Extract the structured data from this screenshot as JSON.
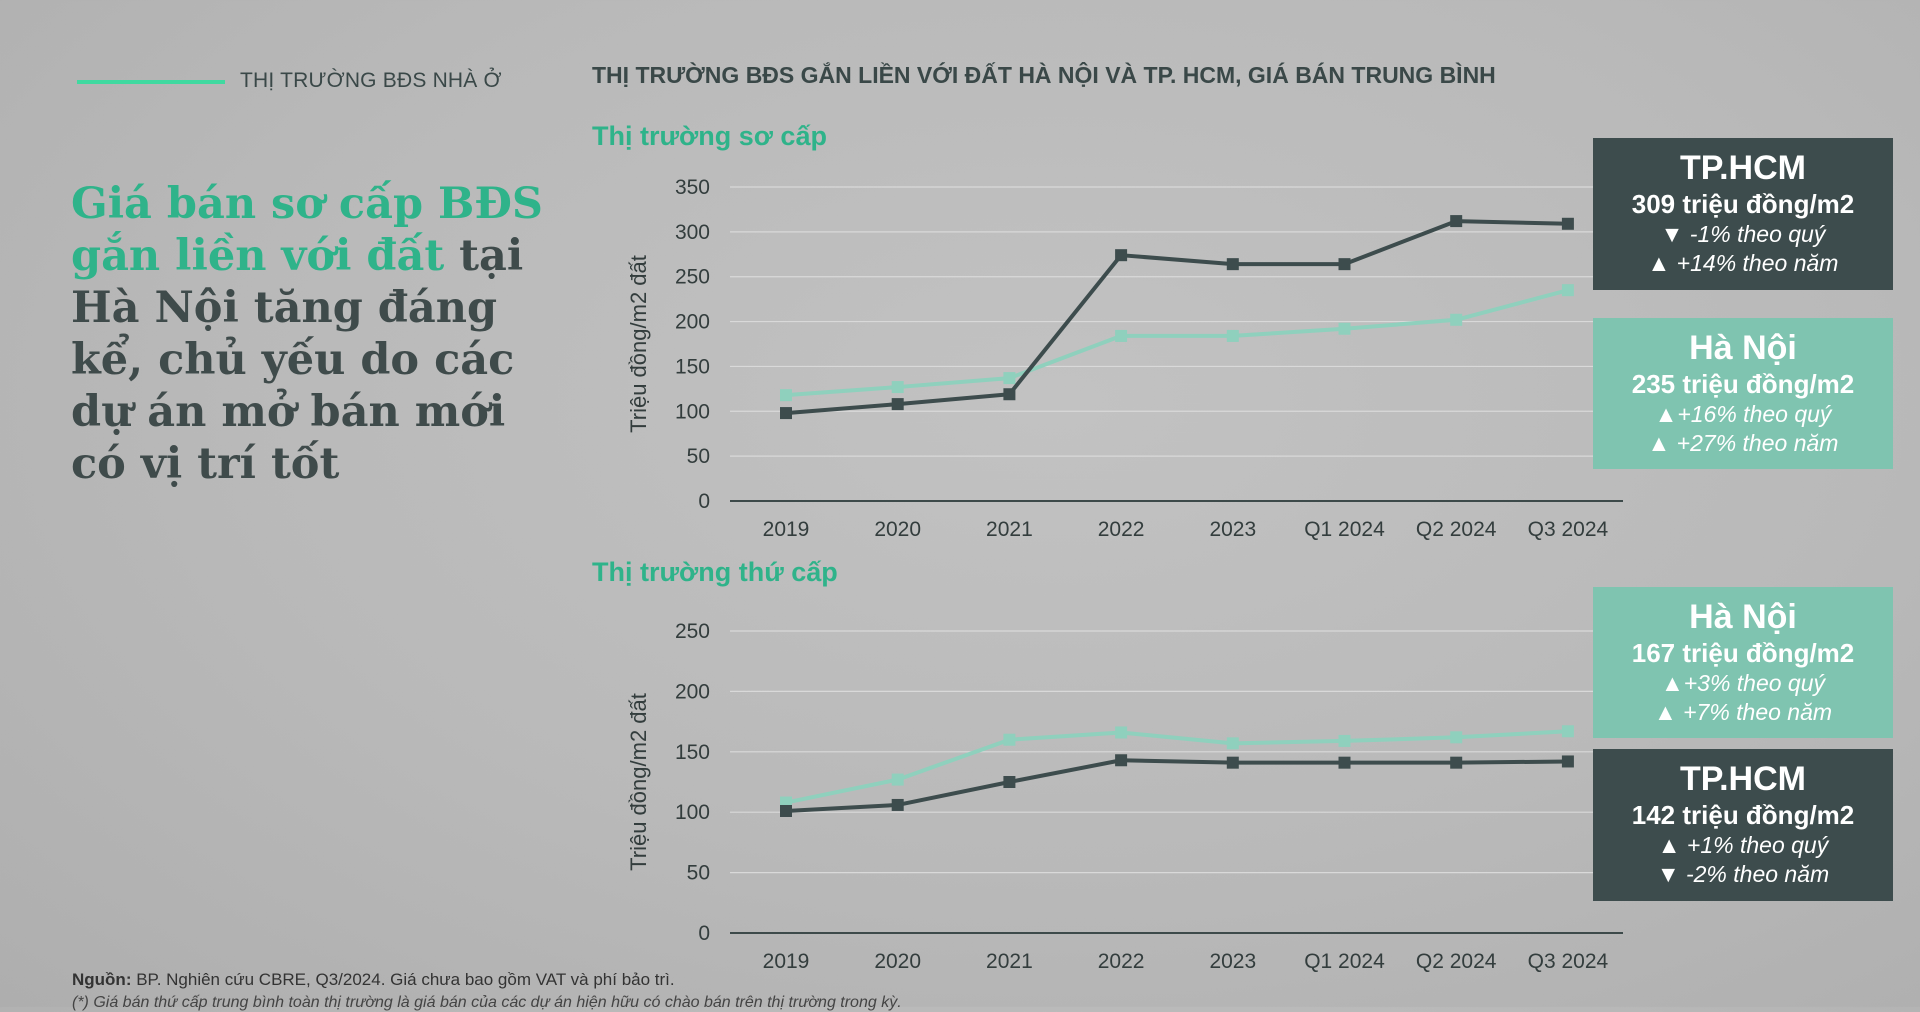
{
  "section_label": "THỊ TRƯỜNG BĐS NHÀ Ở",
  "headline": {
    "highlight": "Giá bán sơ cấp BĐS gắn liền với đất",
    "rest": " tại Hà Nội tăng đáng kể, chủ yếu do các dự án mở bán mới có vị trí tốt"
  },
  "chart_title": "THỊ TRƯỜNG BĐS GẮN LIỀN VỚI ĐẤT HÀ NỘI VÀ TP. HCM, GIÁ BÁN TRUNG BÌNH",
  "colors": {
    "hcm": "#3d4c4d",
    "hanoi": "#8fd0bd",
    "accent": "#2fb38a"
  },
  "chart_data": [
    {
      "type": "line",
      "title": "Thị trường sơ cấp",
      "ylabel": "Triệu đồng/m2 đất",
      "categories": [
        "2019",
        "2020",
        "2021",
        "2022",
        "2023",
        "Q1 2024",
        "Q2 2024",
        "Q3 2024"
      ],
      "ylim": [
        0,
        350
      ],
      "yticks": [
        0,
        50,
        100,
        150,
        200,
        250,
        300,
        350
      ],
      "series": [
        {
          "name": "TP.HCM",
          "values": [
            98,
            108,
            119,
            274,
            264,
            264,
            312,
            309
          ]
        },
        {
          "name": "Hà Nội",
          "values": [
            118,
            127,
            137,
            184,
            184,
            192,
            202,
            235
          ]
        }
      ]
    },
    {
      "type": "line",
      "title": "Thị trường thứ cấp",
      "ylabel": "Triệu đồng/m2 đất",
      "categories": [
        "2019",
        "2020",
        "2021",
        "2022",
        "2023",
        "Q1 2024",
        "Q2 2024",
        "Q3 2024"
      ],
      "ylim": [
        0,
        250
      ],
      "yticks": [
        0,
        50,
        100,
        150,
        200,
        250
      ],
      "series": [
        {
          "name": "TP.HCM",
          "values": [
            101,
            106,
            125,
            143,
            141,
            141,
            141,
            142
          ]
        },
        {
          "name": "Hà Nội",
          "values": [
            108,
            127,
            160,
            166,
            157,
            159,
            162,
            167
          ]
        }
      ]
    }
  ],
  "boxes": {
    "primary_hcm": {
      "city": "TP.HCM",
      "price": "309 triệu đồng/m2",
      "qoq": "▼ -1% theo quý",
      "yoy": "▲ +14% theo năm"
    },
    "primary_hanoi": {
      "city": "Hà Nội",
      "price": "235 triệu đồng/m2",
      "qoq": "▲+16% theo quý",
      "yoy": "▲ +27% theo năm"
    },
    "secondary_hanoi": {
      "city": "Hà Nội",
      "price": "167 triệu đồng/m2",
      "qoq": "▲+3% theo quý",
      "yoy": "▲ +7% theo năm"
    },
    "secondary_hcm": {
      "city": "TP.HCM",
      "price": "142 triệu đồng/m2",
      "qoq": "▲ +1% theo quý",
      "yoy": "▼ -2% theo năm"
    }
  },
  "source": {
    "label": "Nguồn:",
    "text": " BP. Nghiên cứu CBRE, Q3/2024. Giá chưa bao gồm VAT và phí bảo trì.",
    "note": "(*) Giá bán thứ cấp trung bình toàn thị trường là giá bán của các dự án hiện hữu có chào bán trên thị trường trong kỳ."
  }
}
